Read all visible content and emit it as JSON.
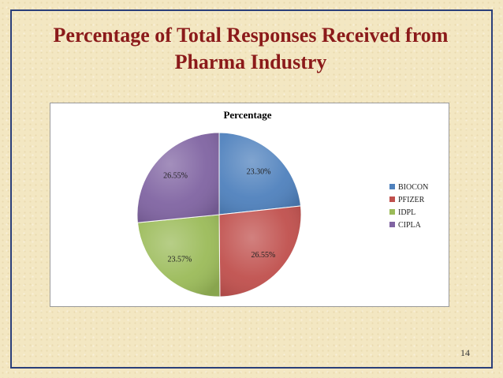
{
  "slide": {
    "title_line1": "Percentage of Total Responses Received from",
    "title_line2": "Pharma Industry",
    "page_number": "14"
  },
  "colors": {
    "title": "#8b1a1a",
    "frame": "#2b3f7a",
    "background": "#f3e7c2"
  },
  "chart_data": {
    "type": "pie",
    "title": "Percentage",
    "legend_position": "right",
    "slices": [
      {
        "label": "BIOCON",
        "value": 23.3,
        "display": "23.30%",
        "color": "#4f81bd"
      },
      {
        "label": "PFIZER",
        "value": 26.55,
        "display": "26.55%",
        "color": "#c0504d"
      },
      {
        "label": "IDPL",
        "value": 23.57,
        "display": "23.57%",
        "color": "#9bbb59"
      },
      {
        "label": "CIPLA",
        "value": 26.55,
        "display": "26.55%",
        "color": "#8064a2"
      }
    ]
  }
}
